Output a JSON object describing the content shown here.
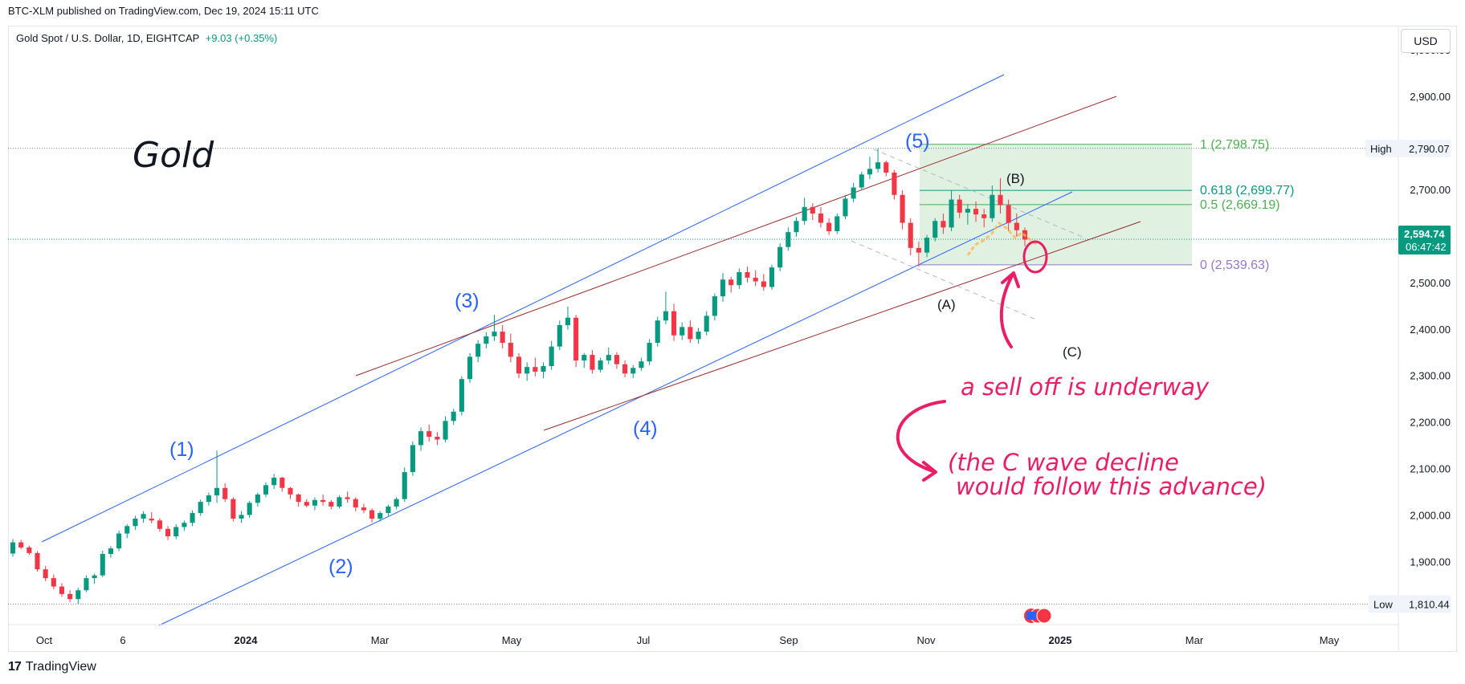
{
  "header": {
    "published": "BTC-XLM published on TradingView.com, Dec 19, 2024 15:11 UTC",
    "symbol": "Gold Spot / U.S. Dollar, 1D, EIGHTCAP",
    "change": "+9.03 (+0.35%)",
    "currency": "USD"
  },
  "footer": {
    "logo": "TradingView"
  },
  "colors": {
    "up": "#089981",
    "down": "#f23645",
    "wave": "#2962ff",
    "channel2": "#9c2a2a",
    "annotation": "#e91e63",
    "fib_zone": "#c8e6c9"
  },
  "chart_data": {
    "type": "candlestick",
    "title": "Gold",
    "ylim": [
      1780,
      3040
    ],
    "y_ticks": [
      "3,000.00",
      "2,900.00",
      "2,800.00",
      "2,700.00",
      "2,600.00",
      "2,500.00",
      "2,400.00",
      "2,300.00",
      "2,200.00",
      "2,100.00",
      "2,000.00",
      "1,900.00"
    ],
    "x_ticks": [
      "Oct",
      "6",
      "2024",
      "Mar",
      "May",
      "Jul",
      "Sep",
      "Nov",
      "2025",
      "Mar",
      "May"
    ],
    "x_ticks_bold": [
      false,
      false,
      true,
      false,
      false,
      false,
      false,
      false,
      true,
      false,
      false
    ],
    "price_labels": {
      "high_label": "High",
      "high_value": "2,790.07",
      "last_value": "2,594.74",
      "countdown": "06:47:42",
      "low_label": "Low",
      "low_value": "1,810.44"
    },
    "waves": [
      "(1)",
      "(2)",
      "(3)",
      "(4)",
      "(5)"
    ],
    "corrective": [
      "(A)",
      "(B)",
      "(C)"
    ],
    "fib_levels": [
      {
        "label": "1 (2,798.75)",
        "price": 2798.75,
        "color": "#4caf50"
      },
      {
        "label": "0.618 (2,699.77)",
        "price": 2699.77,
        "color": "#089981"
      },
      {
        "label": "0.5 (2,669.19)",
        "price": 2669.19,
        "color": "#4caf50"
      },
      {
        "label": "0 (2,539.63)",
        "price": 2539.63,
        "color": "#9575cd"
      }
    ],
    "annotations": [
      "a sell off is underway",
      "(the C wave decline",
      "would follow this advance)"
    ],
    "candles_ohlc": [
      [
        1919,
        1950,
        1912,
        1943
      ],
      [
        1943,
        1948,
        1928,
        1932
      ],
      [
        1932,
        1936,
        1916,
        1920
      ],
      [
        1920,
        1924,
        1880,
        1885
      ],
      [
        1885,
        1892,
        1860,
        1866
      ],
      [
        1866,
        1874,
        1842,
        1848
      ],
      [
        1848,
        1855,
        1826,
        1832
      ],
      [
        1832,
        1840,
        1814,
        1821
      ],
      [
        1821,
        1845,
        1810,
        1840
      ],
      [
        1840,
        1872,
        1836,
        1866
      ],
      [
        1866,
        1876,
        1854,
        1872
      ],
      [
        1872,
        1925,
        1868,
        1918
      ],
      [
        1918,
        1935,
        1910,
        1930
      ],
      [
        1930,
        1968,
        1924,
        1962
      ],
      [
        1962,
        1982,
        1952,
        1978
      ],
      [
        1978,
        2000,
        1970,
        1994
      ],
      [
        1994,
        2010,
        1985,
        2004
      ],
      [
        1994,
        2008,
        1984,
        1990
      ],
      [
        1990,
        1995,
        1966,
        1972
      ],
      [
        1972,
        1978,
        1948,
        1956
      ],
      [
        1956,
        1982,
        1950,
        1976
      ],
      [
        1976,
        1990,
        1968,
        1985
      ],
      [
        1985,
        2012,
        1978,
        2006
      ],
      [
        2006,
        2035,
        2000,
        2030
      ],
      [
        2030,
        2050,
        2022,
        2044
      ],
      [
        2044,
        2140,
        2028,
        2060
      ],
      [
        2060,
        2070,
        2030,
        2036
      ],
      [
        2036,
        2040,
        1988,
        1994
      ],
      [
        1994,
        2010,
        1985,
        2002
      ],
      [
        2002,
        2032,
        1996,
        2028
      ],
      [
        2028,
        2050,
        2020,
        2046
      ],
      [
        2046,
        2072,
        2040,
        2066
      ],
      [
        2066,
        2090,
        2058,
        2082
      ],
      [
        2082,
        2084,
        2052,
        2060
      ],
      [
        2060,
        2062,
        2036,
        2046
      ],
      [
        2046,
        2048,
        2020,
        2030
      ],
      [
        2030,
        2036,
        2018,
        2022
      ],
      [
        2022,
        2040,
        2012,
        2034
      ],
      [
        2034,
        2046,
        2022,
        2030
      ],
      [
        2030,
        2034,
        2014,
        2020
      ],
      [
        2020,
        2044,
        2016,
        2040
      ],
      [
        2040,
        2052,
        2028,
        2036
      ],
      [
        2036,
        2040,
        2010,
        2018
      ],
      [
        2018,
        2026,
        2006,
        2012
      ],
      [
        2012,
        2016,
        1986,
        1994
      ],
      [
        1994,
        2010,
        1988,
        2006
      ],
      [
        2006,
        2024,
        2000,
        2020
      ],
      [
        2020,
        2040,
        2014,
        2036
      ],
      [
        2036,
        2104,
        2030,
        2094
      ],
      [
        2094,
        2160,
        2086,
        2152
      ],
      [
        2152,
        2190,
        2140,
        2182
      ],
      [
        2182,
        2196,
        2160,
        2170
      ],
      [
        2170,
        2180,
        2152,
        2164
      ],
      [
        2164,
        2214,
        2158,
        2204
      ],
      [
        2204,
        2230,
        2196,
        2224
      ],
      [
        2224,
        2300,
        2216,
        2294
      ],
      [
        2294,
        2350,
        2286,
        2342
      ],
      [
        2342,
        2378,
        2330,
        2370
      ],
      [
        2370,
        2395,
        2360,
        2386
      ],
      [
        2386,
        2432,
        2376,
        2396
      ],
      [
        2396,
        2410,
        2360,
        2372
      ],
      [
        2372,
        2392,
        2330,
        2342
      ],
      [
        2342,
        2350,
        2296,
        2306
      ],
      [
        2306,
        2330,
        2290,
        2320
      ],
      [
        2320,
        2340,
        2300,
        2310
      ],
      [
        2310,
        2330,
        2296,
        2322
      ],
      [
        2322,
        2376,
        2314,
        2364
      ],
      [
        2364,
        2420,
        2356,
        2410
      ],
      [
        2410,
        2450,
        2400,
        2426
      ],
      [
        2426,
        2432,
        2320,
        2334
      ],
      [
        2334,
        2350,
        2318,
        2346
      ],
      [
        2346,
        2356,
        2306,
        2314
      ],
      [
        2314,
        2340,
        2308,
        2334
      ],
      [
        2334,
        2362,
        2326,
        2346
      ],
      [
        2346,
        2352,
        2316,
        2326
      ],
      [
        2326,
        2334,
        2298,
        2306
      ],
      [
        2306,
        2324,
        2296,
        2318
      ],
      [
        2318,
        2340,
        2312,
        2332
      ],
      [
        2332,
        2380,
        2324,
        2372
      ],
      [
        2372,
        2428,
        2364,
        2420
      ],
      [
        2420,
        2482,
        2412,
        2440
      ],
      [
        2440,
        2456,
        2376,
        2388
      ],
      [
        2388,
        2416,
        2378,
        2406
      ],
      [
        2406,
        2420,
        2372,
        2380
      ],
      [
        2380,
        2404,
        2370,
        2396
      ],
      [
        2396,
        2440,
        2388,
        2430
      ],
      [
        2430,
        2478,
        2420,
        2472
      ],
      [
        2472,
        2522,
        2460,
        2508
      ],
      [
        2508,
        2514,
        2480,
        2496
      ],
      [
        2496,
        2532,
        2488,
        2524
      ],
      [
        2524,
        2536,
        2502,
        2512
      ],
      [
        2512,
        2528,
        2494,
        2504
      ],
      [
        2504,
        2520,
        2484,
        2492
      ],
      [
        2492,
        2540,
        2486,
        2534
      ],
      [
        2534,
        2586,
        2526,
        2578
      ],
      [
        2578,
        2620,
        2570,
        2610
      ],
      [
        2610,
        2642,
        2600,
        2634
      ],
      [
        2634,
        2684,
        2626,
        2664
      ],
      [
        2664,
        2672,
        2636,
        2650
      ],
      [
        2650,
        2664,
        2620,
        2630
      ],
      [
        2630,
        2640,
        2604,
        2612
      ],
      [
        2612,
        2650,
        2606,
        2644
      ],
      [
        2644,
        2690,
        2638,
        2682
      ],
      [
        2682,
        2716,
        2674,
        2706
      ],
      [
        2706,
        2740,
        2700,
        2734
      ],
      [
        2734,
        2772,
        2724,
        2746
      ],
      [
        2746,
        2790,
        2738,
        2760
      ],
      [
        2760,
        2764,
        2730,
        2738
      ],
      [
        2738,
        2744,
        2680,
        2690
      ],
      [
        2690,
        2700,
        2616,
        2630
      ],
      [
        2630,
        2640,
        2560,
        2576
      ],
      [
        2576,
        2590,
        2536,
        2566
      ],
      [
        2566,
        2604,
        2556,
        2598
      ],
      [
        2598,
        2640,
        2590,
        2634
      ],
      [
        2634,
        2650,
        2606,
        2620
      ],
      [
        2620,
        2700,
        2612,
        2680
      ],
      [
        2680,
        2690,
        2640,
        2652
      ],
      [
        2652,
        2670,
        2626,
        2660
      ],
      [
        2660,
        2676,
        2632,
        2648
      ],
      [
        2648,
        2660,
        2620,
        2640
      ],
      [
        2640,
        2710,
        2632,
        2690
      ],
      [
        2690,
        2726,
        2650,
        2668
      ],
      [
        2668,
        2680,
        2612,
        2630
      ],
      [
        2630,
        2650,
        2600,
        2614
      ],
      [
        2614,
        2620,
        2580,
        2594
      ]
    ]
  }
}
